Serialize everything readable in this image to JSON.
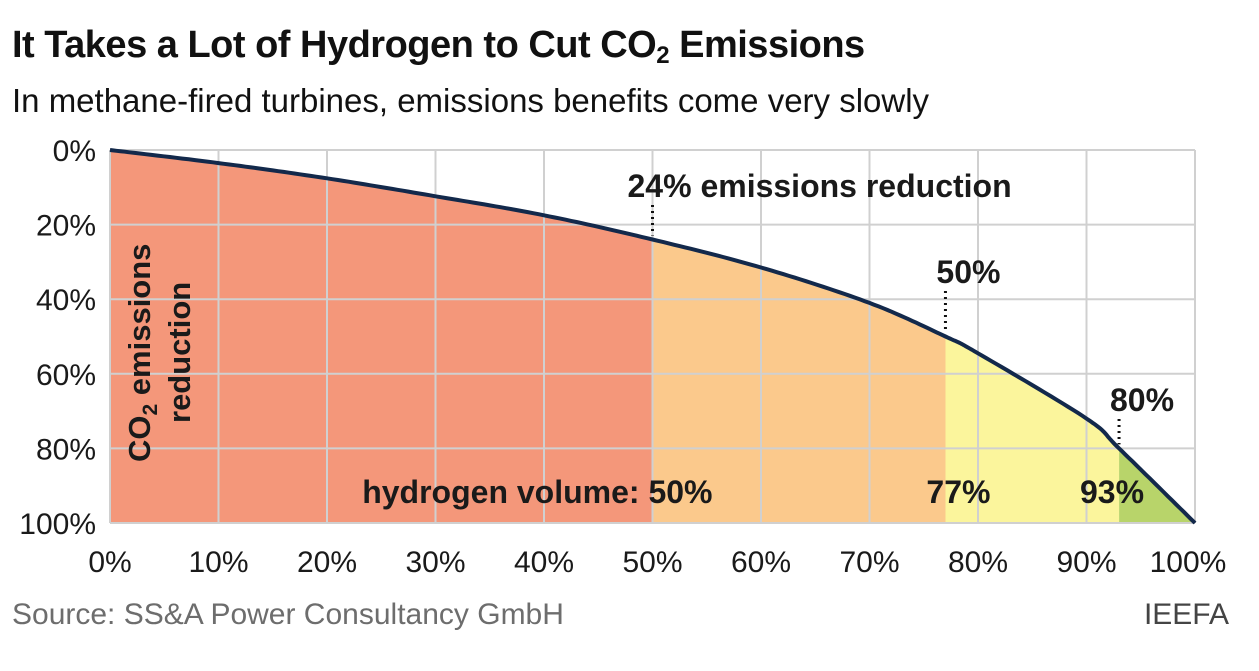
{
  "header": {
    "title": "It Takes a Lot of Hydrogen to Cut CO",
    "title_sub": "2",
    "title_end": " Emissions",
    "subtitle": "In methane-fired turbines, emissions benefits come very slowly"
  },
  "footer": {
    "source": "Source: SS&A Power Consultancy GmbH",
    "brand": "IEEFA"
  },
  "colors": {
    "curve": "#13294b",
    "grid": "#d0d0d0",
    "zone1": "#f4977a",
    "zone2": "#fbc98c",
    "zone3": "#fbf59c",
    "zone4": "#b8d46a"
  },
  "chart_data": {
    "type": "area",
    "title": "It Takes a Lot of Hydrogen to Cut CO2 Emissions",
    "subtitle": "In methane-fired turbines, emissions benefits come very slowly",
    "xlabel": "",
    "ylabel": "CO2 emissions reduction",
    "ylabel_main": "CO",
    "ylabel_sub": "2",
    "ylabel_line1_end": " emissions",
    "ylabel_line2": "reduction",
    "xlim": [
      0,
      100
    ],
    "ylim": [
      0,
      100
    ],
    "y_inverted": true,
    "grid": true,
    "x_ticks": [
      "0%",
      "10%",
      "20%",
      "30%",
      "40%",
      "50%",
      "60%",
      "70%",
      "80%",
      "90%",
      "100%"
    ],
    "y_ticks": [
      "0%",
      "20%",
      "40%",
      "60%",
      "80%",
      "100%"
    ],
    "series": [
      {
        "x": [
          0,
          10,
          20,
          30,
          40,
          50,
          60,
          70,
          77,
          80,
          90,
          93,
          100
        ],
        "y": [
          0,
          3.5,
          7.6,
          12.4,
          17.5,
          24,
          31.5,
          41,
          50,
          54.5,
          72,
          80,
          100
        ]
      }
    ],
    "zones": [
      {
        "from": 0,
        "to": 50,
        "color": "#f4977a"
      },
      {
        "from": 50,
        "to": 77,
        "color": "#fbc98c"
      },
      {
        "from": 77,
        "to": 93,
        "color": "#fbf59c"
      },
      {
        "from": 93,
        "to": 100,
        "color": "#b8d46a"
      }
    ],
    "annotations": [
      {
        "x": 50,
        "y": 24,
        "label": "24% emissions reduction"
      },
      {
        "x": 77,
        "y": 50,
        "label": "50%"
      },
      {
        "x": 93,
        "y": 80,
        "label": "80%"
      }
    ],
    "hydrogen_labels": [
      {
        "x": 50,
        "label": "hydrogen volume: 50%"
      },
      {
        "x": 77,
        "label": "77%"
      },
      {
        "x": 93,
        "label": "93%"
      }
    ]
  }
}
